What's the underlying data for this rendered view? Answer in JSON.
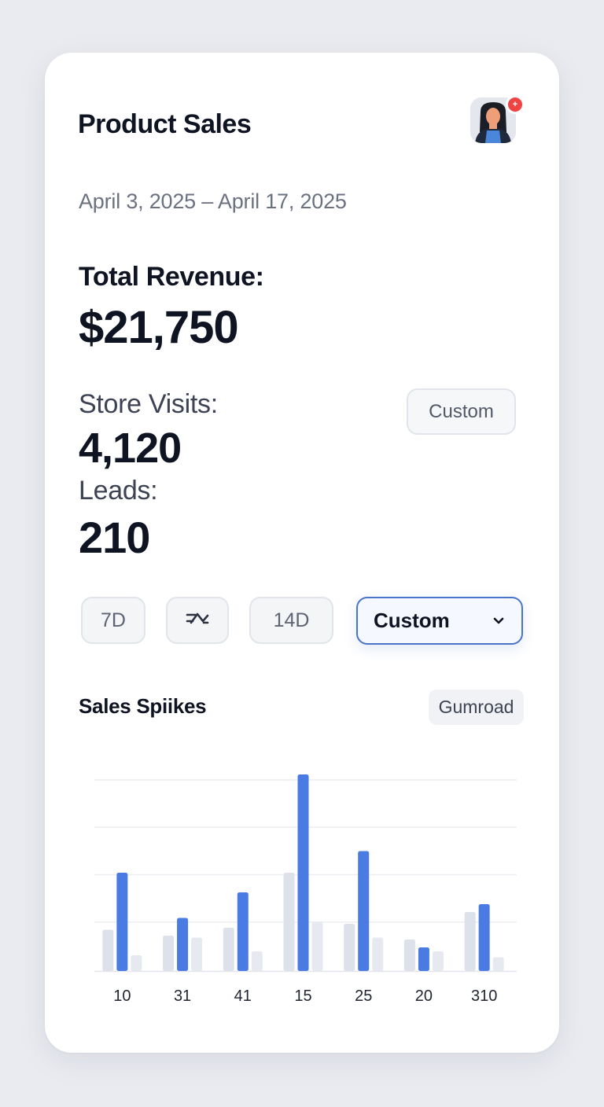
{
  "header": {
    "title": "Product Sales",
    "avatar_icon": "user-avatar-icon",
    "notification_badge": "+",
    "notification_color": "#ef4444"
  },
  "date_range": "April 3, 2025 – April 17, 2025",
  "metrics": {
    "revenue_label": "Total Revenue:",
    "revenue_value": "$21,750",
    "visits_label": "Store Visits:",
    "visits_value": "4,120",
    "leads_label": "Leads:",
    "leads_value": "210"
  },
  "custom_button_label": "Custom",
  "filters": {
    "chip_7d": "7D",
    "chip_icon": "trend-icon",
    "chip_14d": "14D",
    "select_value": "Custom"
  },
  "sales_section": {
    "title": "Sales Spiikes",
    "badge": "Gumroad"
  },
  "colors": {
    "accent": "#4a7be3",
    "muted_bar": "#dde1ea"
  },
  "chart_data": {
    "type": "bar",
    "categories": [
      "10",
      "31",
      "41",
      "15",
      "25",
      "20",
      "310"
    ],
    "series": [
      {
        "values": [
          21,
          18,
          22,
          50,
          24,
          16,
          30
        ]
      },
      {
        "values": [
          50,
          27,
          40,
          100,
          61,
          12,
          34
        ]
      },
      {
        "values": [
          8,
          17,
          10,
          25,
          17,
          10,
          7
        ]
      }
    ],
    "ylim": [
      0,
      100
    ],
    "grid": true,
    "legend": "none"
  }
}
